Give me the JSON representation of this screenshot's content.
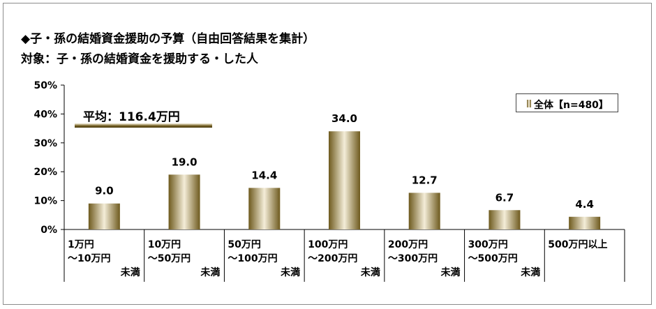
{
  "title": {
    "line1": "◆子・孫の結婚資金援助の予算（自由回答結果を集計）",
    "line2": "対象：子・孫の結婚資金を援助する・した人"
  },
  "legend": {
    "label": "全体【n=480】"
  },
  "average": {
    "label": "平均：116.4万円"
  },
  "colors": {
    "bar_dark": "#6e5a1e",
    "bar_light": "#f4edd8",
    "grid": "#000000"
  },
  "chart_data": {
    "type": "bar",
    "title": "◆子・孫の結婚資金援助の予算（自由回答結果を集計）",
    "subtitle": "対象：子・孫の結婚資金を援助する・した人",
    "y_ticks": [
      "50%",
      "40%",
      "30%",
      "20%",
      "10%",
      "0%"
    ],
    "ylim": [
      0,
      50
    ],
    "categories": [
      [
        "1万円",
        "～10万円",
        "未満"
      ],
      [
        "10万円",
        "～50万円",
        "未満"
      ],
      [
        "50万円",
        "～100万円",
        "未満"
      ],
      [
        "100万円",
        "～200万円",
        "未満"
      ],
      [
        "200万円",
        "～300万円",
        "未満"
      ],
      [
        "300万円",
        "～500万円",
        "未満"
      ],
      [
        "500万円以上"
      ]
    ],
    "series": [
      {
        "name": "全体【n=480】",
        "values": [
          9.0,
          19.0,
          14.4,
          34.0,
          12.7,
          6.7,
          4.4
        ]
      }
    ],
    "data_labels": [
      "9.0",
      "19.0",
      "14.4",
      "34.0",
      "12.7",
      "6.7",
      "4.4"
    ],
    "legend_position": "top-right",
    "grid": false
  }
}
